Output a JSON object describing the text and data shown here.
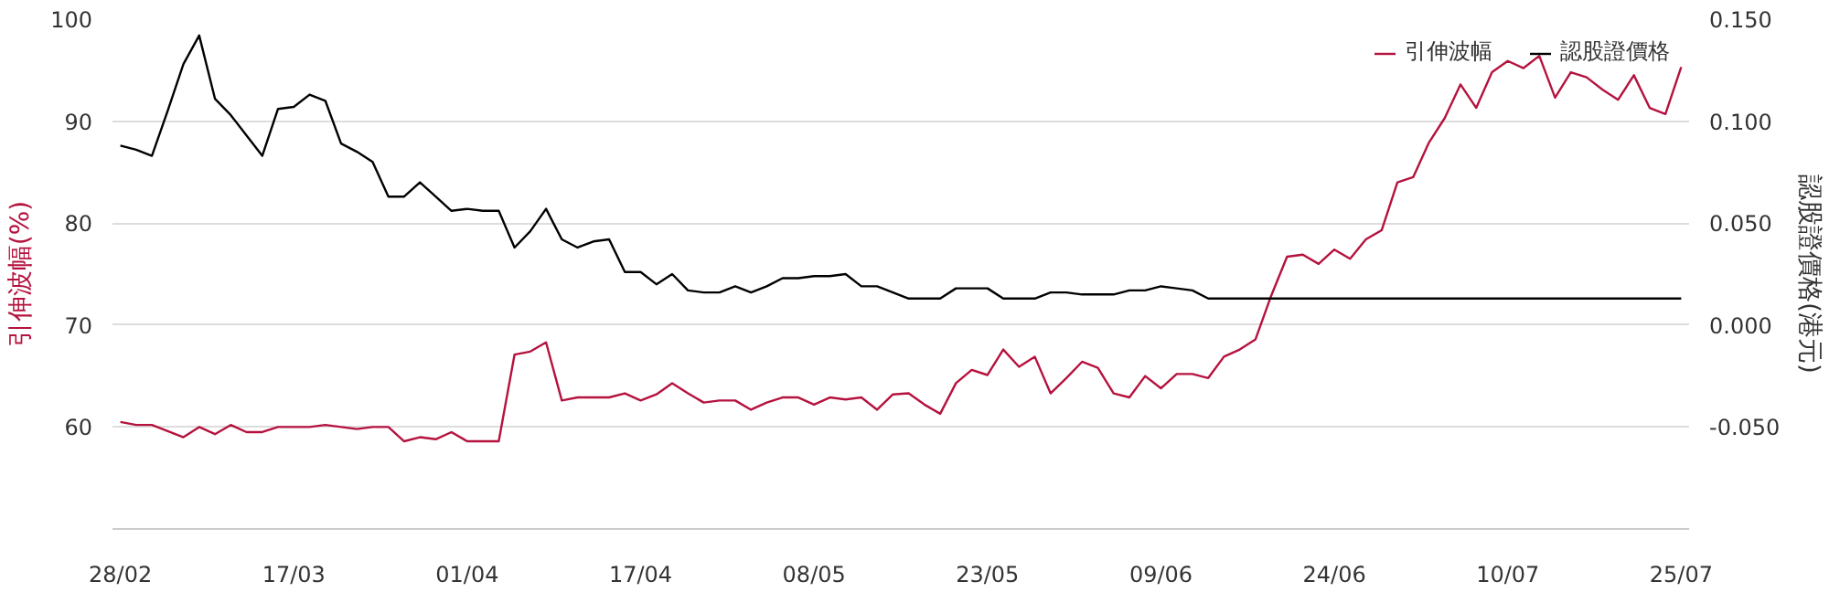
{
  "chart_data": {
    "type": "line",
    "ylabel": "引伸波幅(%)",
    "y2label": "認股證價格(港元)",
    "categories": [
      "28/02",
      null,
      null,
      null,
      null,
      null,
      null,
      null,
      null,
      null,
      null,
      "17/03",
      null,
      null,
      null,
      null,
      null,
      null,
      null,
      null,
      null,
      null,
      "01/04",
      null,
      null,
      null,
      null,
      null,
      null,
      null,
      null,
      null,
      null,
      "17/04",
      null,
      null,
      null,
      null,
      null,
      null,
      null,
      null,
      null,
      null,
      "08/05",
      null,
      null,
      null,
      null,
      null,
      null,
      null,
      null,
      null,
      null,
      "23/05",
      null,
      null,
      null,
      null,
      null,
      null,
      null,
      null,
      null,
      null,
      "09/06",
      null,
      null,
      null,
      null,
      null,
      null,
      null,
      null,
      null,
      null,
      "24/06",
      null,
      null,
      null,
      null,
      null,
      null,
      null,
      null,
      null,
      null,
      "10/07",
      null,
      null,
      null,
      null,
      null,
      null,
      null,
      null,
      null,
      null,
      "25/07"
    ],
    "ylim": [
      50,
      100
    ],
    "yticks": [
      60,
      70,
      80,
      90,
      100
    ],
    "y2lim": [
      -0.1,
      0.15
    ],
    "y2ticks": [
      {
        "value": -0.05,
        "label": "-0.050"
      },
      {
        "value": 0,
        "label": "0.000"
      },
      {
        "value": 0.05,
        "label": "0.050"
      },
      {
        "value": 0.1,
        "label": "0.100"
      },
      {
        "value": 0.15,
        "label": "0.150"
      }
    ],
    "grid": "y",
    "legend": "top right",
    "marker": "none",
    "line_style": "solid",
    "series": [
      {
        "name": "引伸波幅",
        "color": "#b5123e",
        "values": [
          60.5,
          60.2,
          60.2,
          59.6,
          59.0,
          60.0,
          59.3,
          60.2,
          59.5,
          59.5,
          60.0,
          60.0,
          60.0,
          60.2,
          60.0,
          59.8,
          60.0,
          60.0,
          58.6,
          59.0,
          58.8,
          59.5,
          58.6,
          58.6,
          58.6,
          67.1,
          67.4,
          68.3,
          62.6,
          62.9,
          62.9,
          62.9,
          63.3,
          62.6,
          63.2,
          64.3,
          63.3,
          62.4,
          62.6,
          62.6,
          61.7,
          62.4,
          62.9,
          62.9,
          62.2,
          62.9,
          62.7,
          62.9,
          61.7,
          63.2,
          63.3,
          62.2,
          61.3,
          64.3,
          65.6,
          65.1,
          67.6,
          65.9,
          66.9,
          63.3,
          64.8,
          66.4,
          65.8,
          63.3,
          62.9,
          65.0,
          63.8,
          65.2,
          65.2,
          64.8,
          66.9,
          67.6,
          68.6,
          72.9,
          76.7,
          76.9,
          76.0,
          77.4,
          76.5,
          78.4,
          79.3,
          84.0,
          84.5,
          87.9,
          90.3,
          93.6,
          91.3,
          94.8,
          95.9,
          95.2,
          96.4,
          92.3,
          94.8,
          94.3,
          93.1,
          92.1,
          94.5,
          91.3,
          90.7,
          95.3
        ]
      },
      {
        "name": "認股證價格",
        "color": "#000000",
        "axis": "y2",
        "values": [
          0.088,
          0.086,
          0.083,
          0.105,
          0.128,
          0.142,
          0.111,
          0.103,
          0.093,
          0.083,
          0.106,
          0.107,
          0.113,
          0.11,
          0.089,
          0.085,
          0.08,
          0.063,
          0.063,
          0.07,
          0.063,
          0.056,
          0.057,
          0.056,
          0.056,
          0.038,
          0.046,
          0.057,
          0.042,
          0.038,
          0.041,
          0.042,
          0.026,
          0.026,
          0.02,
          0.025,
          0.017,
          0.016,
          0.016,
          0.019,
          0.016,
          0.019,
          0.023,
          0.023,
          0.024,
          0.024,
          0.025,
          0.019,
          0.019,
          0.016,
          0.013,
          0.013,
          0.013,
          0.018,
          0.018,
          0.018,
          0.013,
          0.013,
          0.013,
          0.016,
          0.016,
          0.015,
          0.015,
          0.015,
          0.017,
          0.017,
          0.019,
          0.018,
          0.017,
          0.013,
          0.013,
          0.013,
          0.013,
          0.013,
          0.013,
          0.013,
          0.013,
          0.013,
          0.013,
          0.013,
          0.013,
          0.013,
          0.013,
          0.013,
          0.013,
          0.013,
          0.013,
          0.013,
          0.013,
          0.013,
          0.013,
          0.013,
          0.013,
          0.013,
          0.013,
          0.013,
          0.013,
          0.013,
          0.013,
          0.013
        ]
      }
    ]
  }
}
